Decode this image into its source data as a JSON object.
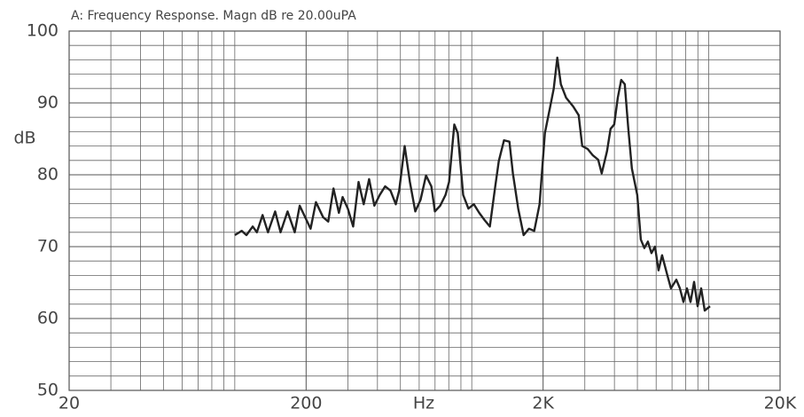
{
  "chart_data": {
    "type": "line",
    "title": "A: Frequency Response. Magn dB re 20.00uPA",
    "x_label": "Hz",
    "y_label": "dB",
    "xscale": "log",
    "grid": true,
    "xlim": [
      20,
      20000
    ],
    "ylim": [
      50,
      100
    ],
    "xticks": [
      20,
      200,
      {
        "value": 2000,
        "label": "2K"
      },
      {
        "value": 20000,
        "label": "20K"
      }
    ],
    "yticks": [
      50,
      60,
      70,
      80,
      90,
      100
    ],
    "x_minor_grid": [
      30,
      40,
      50,
      60,
      70,
      80,
      90,
      100,
      300,
      400,
      500,
      600,
      700,
      800,
      900,
      1000,
      3000,
      4000,
      5000,
      6000,
      7000,
      8000,
      9000,
      10000
    ],
    "y_minor_grid": [
      52,
      54,
      56,
      58,
      62,
      64,
      66,
      68,
      72,
      74,
      76,
      78,
      82,
      84,
      86,
      88,
      92,
      94,
      96,
      98
    ],
    "x": [
      100,
      107,
      112,
      119,
      124,
      131,
      138,
      148,
      156,
      167,
      179,
      188,
      198,
      209,
      220,
      236,
      248,
      261,
      275,
      285,
      300,
      316,
      333,
      350,
      369,
      388,
      409,
      431,
      454,
      478,
      494,
      521,
      548,
      578,
      608,
      641,
      675,
      699,
      736,
      775,
      802,
      844,
      873,
      920,
      968,
      1021,
      1075,
      1132,
      1192,
      1256,
      1300,
      1368,
      1442,
      1492,
      1571,
      1655,
      1743,
      1836,
      1932,
      2035,
      2143,
      2218,
      2296,
      2377,
      2503,
      2682,
      2825,
      2924,
      3079,
      3243,
      3415,
      3535,
      3724,
      3854,
      3990,
      4130,
      4274,
      4424,
      4579,
      4740,
      4993,
      5168,
      5349,
      5537,
      5731,
      5932,
      6140,
      6355,
      6694,
      6929,
      7298,
      7554,
      7819,
      8093,
      8377,
      8670,
      8975,
      9289,
      9615,
      10126
    ],
    "series": [
      {
        "color": "#222222",
        "values": [
          71.6,
          72.2,
          71.6,
          72.8,
          72.0,
          74.4,
          72.0,
          74.9,
          72.0,
          74.9,
          72.0,
          75.7,
          74.1,
          72.5,
          76.2,
          74.1,
          73.5,
          78.1,
          74.7,
          76.9,
          75.3,
          72.8,
          79.0,
          75.9,
          79.4,
          75.7,
          77.2,
          78.4,
          77.8,
          75.9,
          77.8,
          84.0,
          79.0,
          74.9,
          76.5,
          79.9,
          78.4,
          74.9,
          75.7,
          77.2,
          79.0,
          87.0,
          85.8,
          77.2,
          75.3,
          75.9,
          74.7,
          73.7,
          72.8,
          78.4,
          81.9,
          84.8,
          84.6,
          80.2,
          75.3,
          71.6,
          72.5,
          72.2,
          75.9,
          85.8,
          89.5,
          92.0,
          96.3,
          92.6,
          90.7,
          89.5,
          88.3,
          84.0,
          83.6,
          82.7,
          82.1,
          80.2,
          83.3,
          86.4,
          87.0,
          90.7,
          93.2,
          92.6,
          86.4,
          80.9,
          77.2,
          71.0,
          69.8,
          70.7,
          69.1,
          70.0,
          66.7,
          68.8,
          66.0,
          64.2,
          65.4,
          64.2,
          62.3,
          64.2,
          62.3,
          65.1,
          61.7,
          64.2,
          61.1,
          61.7
        ]
      }
    ]
  }
}
